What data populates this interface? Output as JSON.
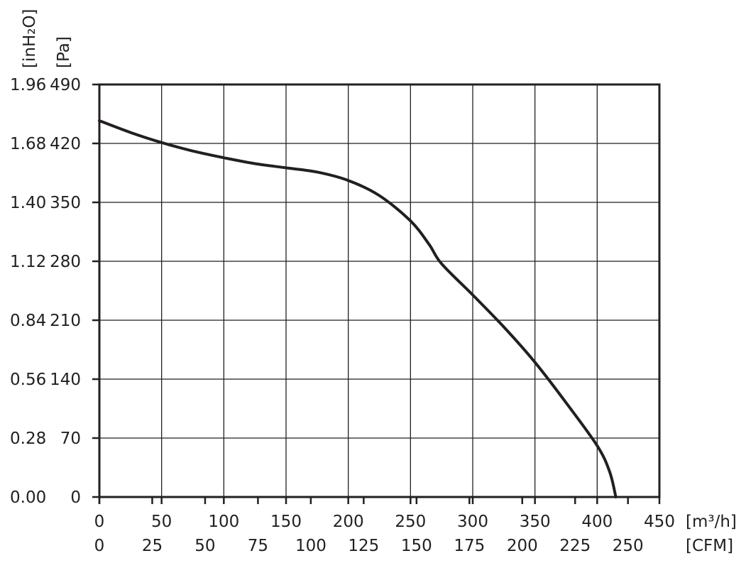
{
  "chart_data": {
    "type": "line",
    "title": "",
    "grid": true,
    "legend": "none",
    "x_axis": {
      "unit_primary": "[m³/h]",
      "unit_secondary": "[CFM]",
      "range": [
        0,
        450
      ],
      "ticks_primary": [
        "0",
        "50",
        "100",
        "150",
        "200",
        "250",
        "300",
        "350",
        "400",
        "450"
      ],
      "ticks_secondary": [
        "0",
        "25",
        "50",
        "75",
        "100",
        "125",
        "150",
        "175",
        "200",
        "225",
        "250"
      ]
    },
    "y_axis": {
      "unit_primary": "[Pa]",
      "unit_secondary": "[inH₂O]",
      "range": [
        0,
        490
      ],
      "ticks_primary": [
        "0",
        "70",
        "140",
        "210",
        "280",
        "350",
        "420",
        "490"
      ],
      "ticks_secondary": [
        "0.00",
        "0.28",
        "0.56",
        "0.84",
        "1.12",
        "1.40",
        "1.68",
        "1.96"
      ]
    },
    "series": [
      {
        "x": [
          0,
          25,
          50,
          75,
          100,
          125,
          150,
          175,
          200,
          225,
          250,
          265,
          275,
          300,
          325,
          350,
          375,
          400,
          410,
          415
        ],
        "y": [
          447,
          433,
          421,
          411,
          403,
          396,
          391,
          386,
          376,
          358,
          328,
          300,
          277,
          240,
          202,
          160,
          112,
          61,
          30,
          0
        ]
      }
    ],
    "colors": {
      "line": "#231f20",
      "grid": "#231f20",
      "text": "#231f20"
    }
  }
}
